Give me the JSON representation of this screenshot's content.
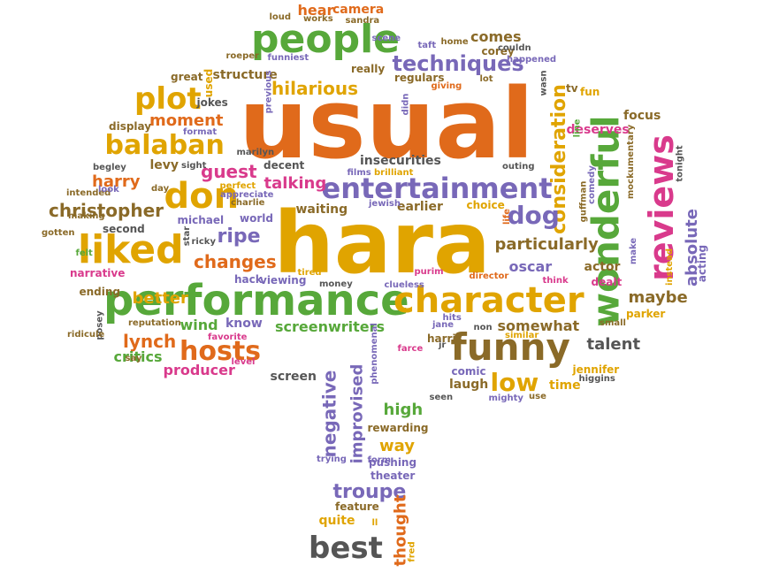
{
  "palette": {
    "orange": "#e06a1b",
    "gold": "#e0a400",
    "green": "#57a83a",
    "purple": "#7868b8",
    "magenta": "#d93a8c",
    "brown": "#8a6a28",
    "gray": "#555555",
    "teal": "#2aa890"
  },
  "words": [
    {
      "text": "usual",
      "color": "orange"
    },
    {
      "text": "hara",
      "color": "gold"
    },
    {
      "text": "performance",
      "color": "green"
    },
    {
      "text": "character",
      "color": "gold"
    },
    {
      "text": "people",
      "color": "green"
    },
    {
      "text": "wonderful",
      "color": "green"
    },
    {
      "text": "reviews",
      "color": "magenta"
    },
    {
      "text": "funny",
      "color": "brown"
    },
    {
      "text": "liked",
      "color": "gold"
    },
    {
      "text": "entertainment",
      "color": "purple"
    },
    {
      "text": "don",
      "color": "gold"
    },
    {
      "text": "balaban",
      "color": "gold"
    },
    {
      "text": "plot",
      "color": "gold"
    },
    {
      "text": "hosts",
      "color": "orange"
    },
    {
      "text": "best",
      "color": "gray"
    },
    {
      "text": "techniques",
      "color": "purple"
    },
    {
      "text": "consideration",
      "color": "gold"
    },
    {
      "text": "dog",
      "color": "purple"
    },
    {
      "text": "low",
      "color": "gold"
    },
    {
      "text": "troupe",
      "color": "purple"
    },
    {
      "text": "christopher",
      "color": "brown"
    },
    {
      "text": "guest",
      "color": "magenta"
    },
    {
      "text": "ripe",
      "color": "purple"
    },
    {
      "text": "changes",
      "color": "orange"
    },
    {
      "text": "negative",
      "color": "purple"
    },
    {
      "text": "improvised",
      "color": "purple"
    },
    {
      "text": "absolute",
      "color": "purple"
    },
    {
      "text": "thought",
      "color": "orange"
    },
    {
      "text": "hilarious",
      "color": "gold"
    },
    {
      "text": "particularly",
      "color": "brown"
    },
    {
      "text": "talking",
      "color": "magenta"
    },
    {
      "text": "screenwriters",
      "color": "green"
    },
    {
      "text": "maybe",
      "color": "brown"
    },
    {
      "text": "oscar",
      "color": "purple"
    },
    {
      "text": "somewhat",
      "color": "brown"
    },
    {
      "text": "talent",
      "color": "gray"
    },
    {
      "text": "lynch",
      "color": "orange"
    },
    {
      "text": "high",
      "color": "green"
    },
    {
      "text": "way",
      "color": "gold"
    },
    {
      "text": "better",
      "color": "gold"
    },
    {
      "text": "harry",
      "color": "orange"
    },
    {
      "text": "moment",
      "color": "orange"
    },
    {
      "text": "comes",
      "color": "brown"
    },
    {
      "text": "insecurities",
      "color": "gray"
    },
    {
      "text": "waiting",
      "color": "brown"
    },
    {
      "text": "critics",
      "color": "green"
    },
    {
      "text": "producer",
      "color": "magenta"
    },
    {
      "text": "wind",
      "color": "green"
    },
    {
      "text": "know",
      "color": "purple"
    },
    {
      "text": "earlier",
      "color": "brown"
    },
    {
      "text": "quite",
      "color": "gold"
    },
    {
      "text": "structure",
      "color": "brown"
    },
    {
      "text": "hear",
      "color": "orange"
    },
    {
      "text": "camera",
      "color": "orange"
    },
    {
      "text": "levy",
      "color": "brown"
    },
    {
      "text": "time",
      "color": "gold"
    },
    {
      "text": "laugh",
      "color": "brown"
    },
    {
      "text": "screen",
      "color": "gray"
    },
    {
      "text": "focus",
      "color": "brown"
    },
    {
      "text": "actor",
      "color": "brown"
    },
    {
      "text": "deserves",
      "color": "magenta"
    },
    {
      "text": "tv",
      "color": "brown"
    },
    {
      "text": "fun",
      "color": "gold"
    },
    {
      "text": "michael",
      "color": "purple"
    },
    {
      "text": "hack",
      "color": "purple"
    },
    {
      "text": "viewing",
      "color": "purple"
    },
    {
      "text": "choice",
      "color": "gold"
    },
    {
      "text": "rewarding",
      "color": "brown"
    },
    {
      "text": "pushing",
      "color": "purple"
    },
    {
      "text": "theater",
      "color": "purple"
    },
    {
      "text": "feature",
      "color": "brown"
    },
    {
      "text": "decent",
      "color": "gray"
    },
    {
      "text": "dealt",
      "color": "magenta"
    },
    {
      "text": "parker",
      "color": "gold"
    },
    {
      "text": "comic",
      "color": "purple"
    },
    {
      "text": "jennifer",
      "color": "gold"
    },
    {
      "text": "harris",
      "color": "brown"
    },
    {
      "text": "jane",
      "color": "purple"
    },
    {
      "text": "hits",
      "color": "purple"
    },
    {
      "text": "farce",
      "color": "magenta"
    },
    {
      "text": "clueless",
      "color": "purple"
    },
    {
      "text": "director",
      "color": "orange"
    },
    {
      "text": "think",
      "color": "magenta"
    },
    {
      "text": "display",
      "color": "brown"
    },
    {
      "text": "jokes",
      "color": "gray"
    },
    {
      "text": "great",
      "color": "brown"
    },
    {
      "text": "used",
      "color": "gold"
    },
    {
      "text": "really",
      "color": "brown"
    },
    {
      "text": "regulars",
      "color": "brown"
    },
    {
      "text": "corey",
      "color": "brown"
    },
    {
      "text": "happened",
      "color": "purple"
    },
    {
      "text": "second",
      "color": "gray"
    },
    {
      "text": "felt",
      "color": "green"
    },
    {
      "text": "narrative",
      "color": "magenta"
    },
    {
      "text": "ending",
      "color": "brown"
    },
    {
      "text": "reputation",
      "color": "brown"
    },
    {
      "text": "favorite",
      "color": "magenta"
    },
    {
      "text": "world",
      "color": "purple"
    },
    {
      "text": "jewish",
      "color": "purple"
    },
    {
      "text": "appreciate",
      "color": "purple"
    },
    {
      "text": "charlie",
      "color": "brown"
    },
    {
      "text": "perfect",
      "color": "gold"
    },
    {
      "text": "money",
      "color": "gray"
    },
    {
      "text": "tired",
      "color": "gold"
    },
    {
      "text": "purim",
      "color": "magenta"
    },
    {
      "text": "similar",
      "color": "gold"
    },
    {
      "text": "small",
      "color": "brown"
    },
    {
      "text": "seen",
      "color": "gray"
    },
    {
      "text": "mighty",
      "color": "purple"
    },
    {
      "text": "use",
      "color": "brown"
    },
    {
      "text": "higgins",
      "color": "gray"
    },
    {
      "text": "form",
      "color": "purple"
    },
    {
      "text": "trying",
      "color": "purple"
    },
    {
      "text": "fred",
      "color": "gold"
    },
    {
      "text": "ll",
      "color": "gold"
    },
    {
      "text": "instead",
      "color": "gold"
    },
    {
      "text": "acting",
      "color": "purple"
    },
    {
      "text": "make",
      "color": "purple"
    },
    {
      "text": "tonight",
      "color": "gray"
    },
    {
      "text": "mockumentary",
      "color": "brown"
    },
    {
      "text": "guffman",
      "color": "brown"
    },
    {
      "text": "comedy",
      "color": "purple"
    },
    {
      "text": "line",
      "color": "green"
    },
    {
      "text": "wasn",
      "color": "gray"
    },
    {
      "text": "lot",
      "color": "brown"
    },
    {
      "text": "giving",
      "color": "orange"
    },
    {
      "text": "didn",
      "color": "purple"
    },
    {
      "text": "outing",
      "color": "gray"
    },
    {
      "text": "brilliant",
      "color": "gold"
    },
    {
      "text": "films",
      "color": "purple"
    },
    {
      "text": "marilyn",
      "color": "gray"
    },
    {
      "text": "previous",
      "color": "purple"
    },
    {
      "text": "format",
      "color": "purple"
    },
    {
      "text": "roeper",
      "color": "brown"
    },
    {
      "text": "funniest",
      "color": "purple"
    },
    {
      "text": "scene",
      "color": "purple"
    },
    {
      "text": "taft",
      "color": "purple"
    },
    {
      "text": "home",
      "color": "brown"
    },
    {
      "text": "couldn",
      "color": "gray"
    },
    {
      "text": "works",
      "color": "brown"
    },
    {
      "text": "sandra",
      "color": "brown"
    },
    {
      "text": "loud",
      "color": "brown"
    },
    {
      "text": "begley",
      "color": "gray"
    },
    {
      "text": "intended",
      "color": "brown"
    },
    {
      "text": "look",
      "color": "purple"
    },
    {
      "text": "making",
      "color": "brown"
    },
    {
      "text": "gotten",
      "color": "brown"
    },
    {
      "text": "sight",
      "color": "gray"
    },
    {
      "text": "day",
      "color": "brown"
    },
    {
      "text": "ricky",
      "color": "gray"
    },
    {
      "text": "star",
      "color": "gray"
    },
    {
      "text": "posey",
      "color": "gray"
    },
    {
      "text": "ridicule",
      "color": "brown"
    },
    {
      "text": "say",
      "color": "brown"
    },
    {
      "text": "level",
      "color": "magenta"
    },
    {
      "text": "phenomenal",
      "color": "purple"
    },
    {
      "text": "jr",
      "color": "gray"
    },
    {
      "text": "non",
      "color": "gray"
    },
    {
      "text": "life",
      "color": "orange"
    }
  ]
}
